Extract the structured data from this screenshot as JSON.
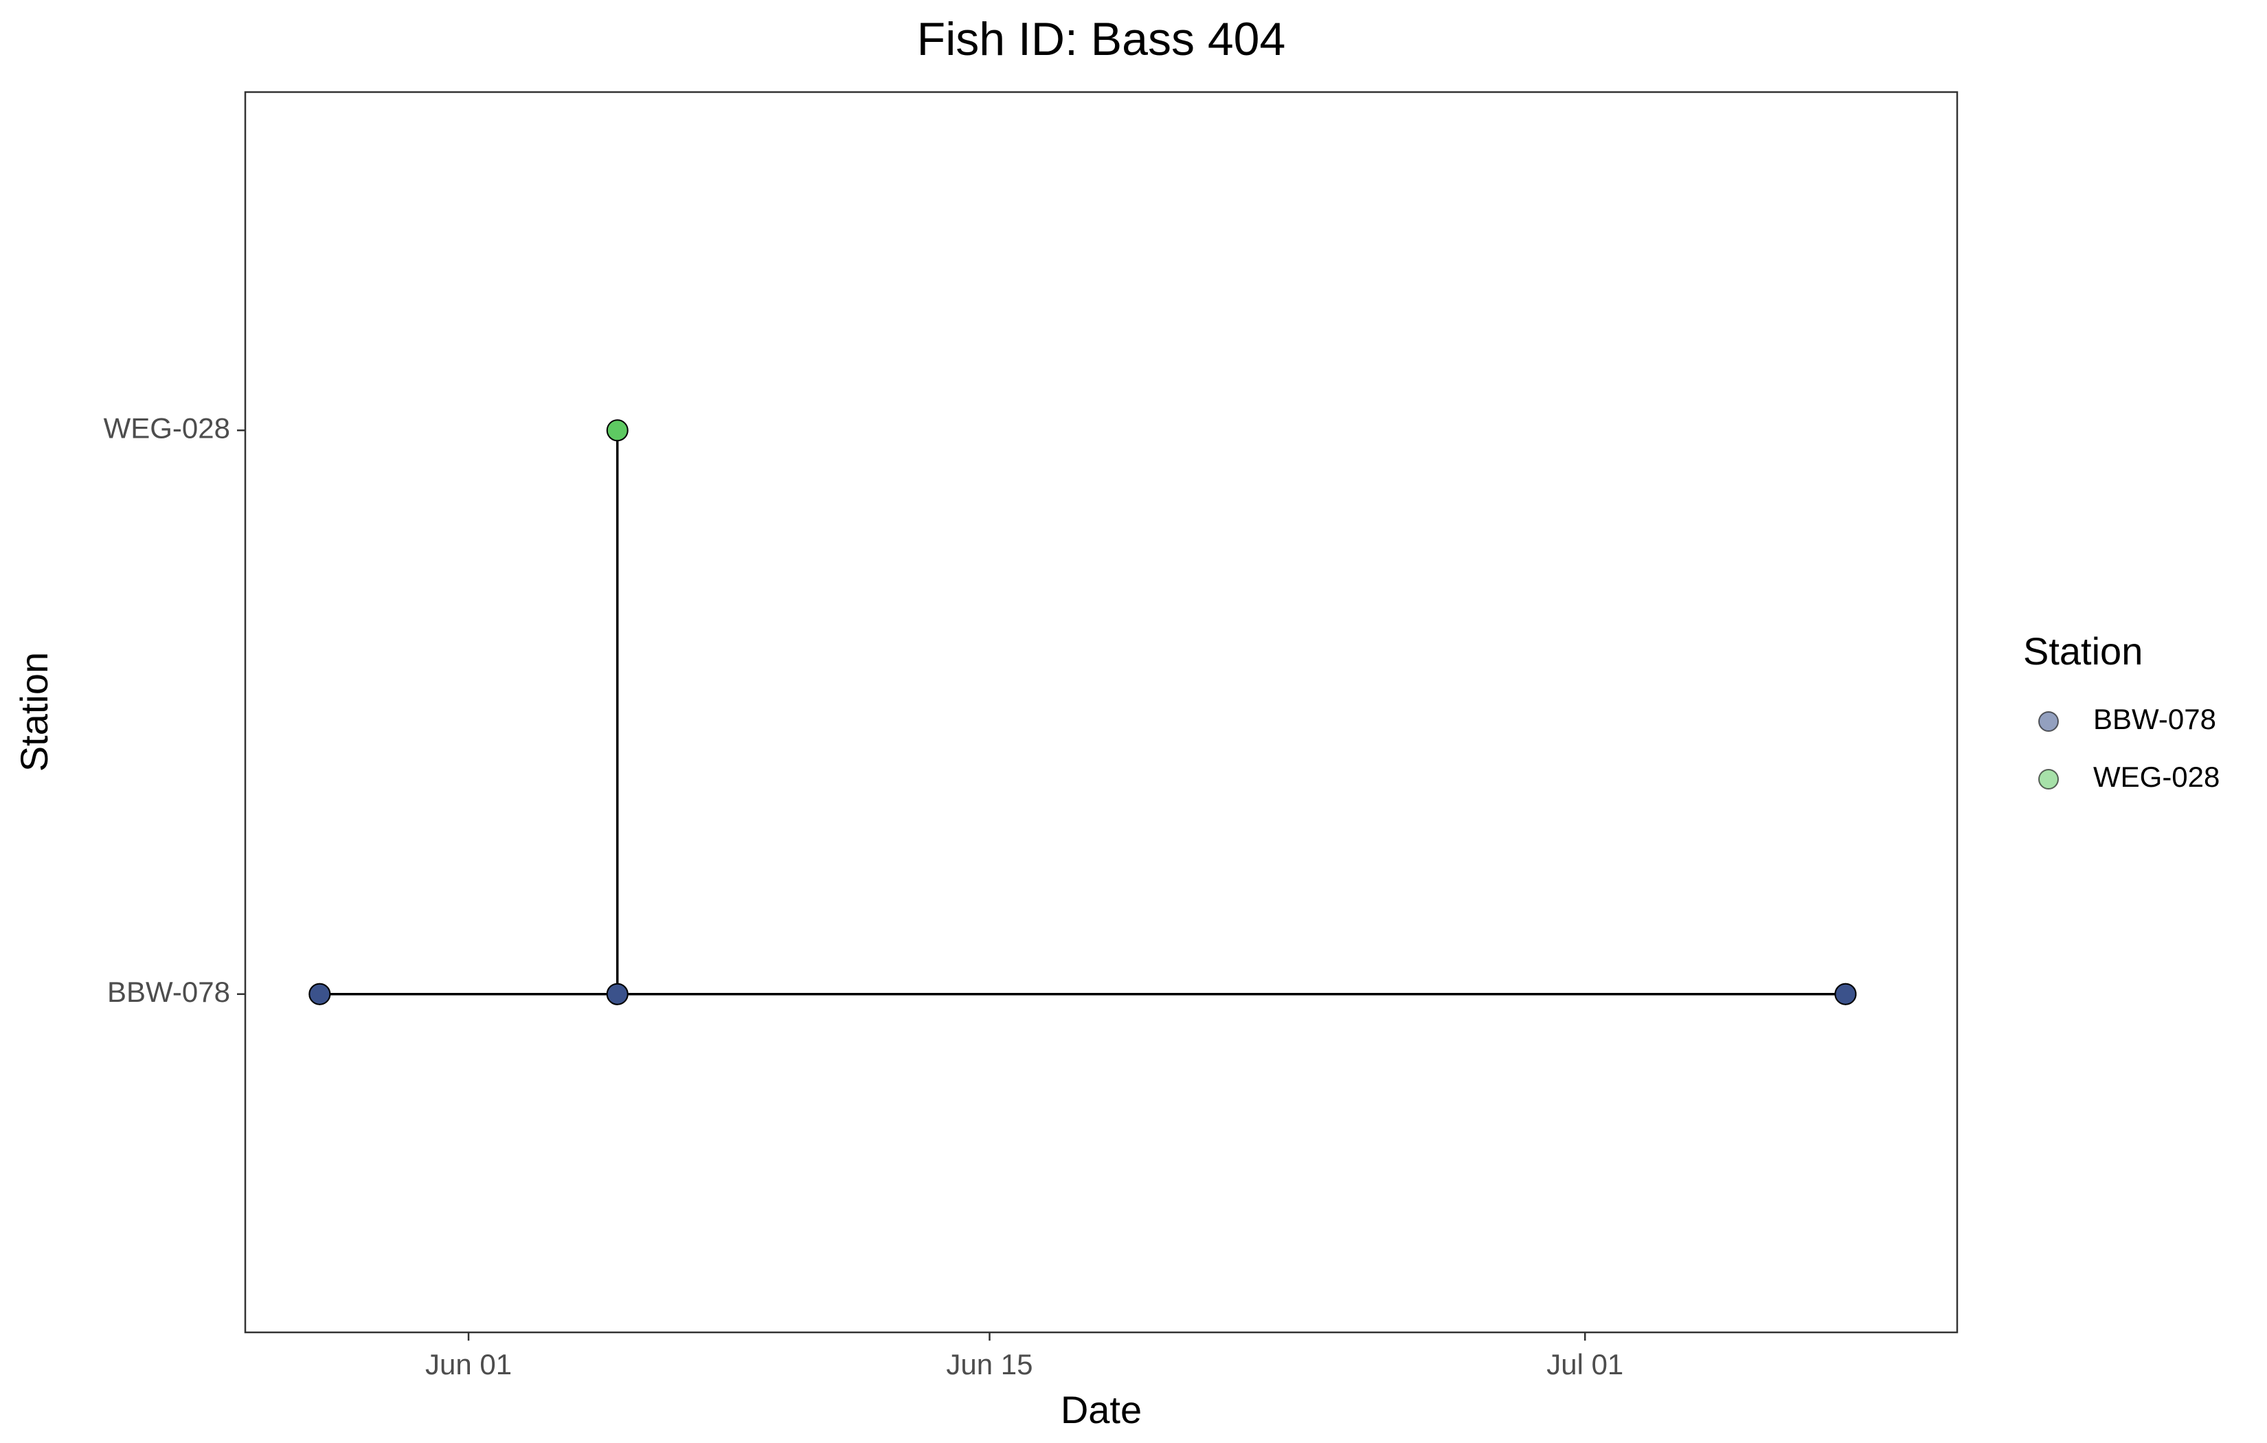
{
  "chart_data": {
    "type": "line",
    "title": "Fish ID: Bass 404",
    "x_label": "Date",
    "y_label": "Station",
    "categories": [
      "BBW-078",
      "WEG-028"
    ],
    "x": [
      "May 28",
      "May 28",
      "Jun 05",
      "Jun 05",
      "Jun 05",
      "Jul 08",
      "Jul 08"
    ],
    "values": [
      "BBW-078",
      "BBW-078",
      "BBW-078",
      "WEG-028",
      "BBW-078",
      "BBW-078",
      "BBW-078"
    ],
    "line_color": "#000000",
    "xlim": [
      "May 26",
      "Jul 11"
    ],
    "xticks": [
      "Jun 01",
      "Jun 15",
      "Jul 01"
    ],
    "legend": {
      "title": "Station",
      "position": "right",
      "entries": [
        {
          "name": "BBW-078",
          "color": "#3b528b"
        },
        {
          "name": "WEG-028",
          "color": "#5ec962"
        }
      ]
    },
    "grid": false
  }
}
